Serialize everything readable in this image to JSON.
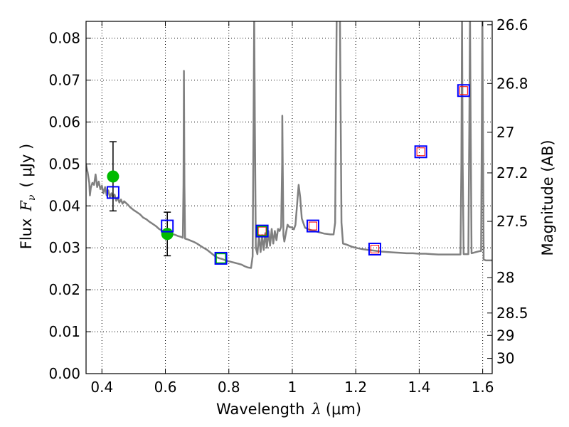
{
  "chart_data": {
    "type": "scatter",
    "xlabel": {
      "prefix": "Wavelength",
      "symbol": "λ",
      "unit": "(μm)"
    },
    "ylabel": {
      "prefix": "Flux",
      "symbol": "F",
      "subscript": "ν",
      "unit": "( μJy )"
    },
    "ylabel_right": "Magnitude (AB)",
    "xlim": [
      0.35,
      1.63
    ],
    "ylim": [
      0.0,
      0.084
    ],
    "grid": true,
    "x_ticks": [
      {
        "value": 0.4,
        "label": "0.4"
      },
      {
        "value": 0.6,
        "label": "0.6"
      },
      {
        "value": 0.8,
        "label": "0.8"
      },
      {
        "value": 1.0,
        "label": "1"
      },
      {
        "value": 1.2,
        "label": "1.2"
      },
      {
        "value": 1.4,
        "label": "1.4"
      },
      {
        "value": 1.6,
        "label": "1.6"
      }
    ],
    "y_ticks": [
      {
        "value": 0.0,
        "label": "0.00"
      },
      {
        "value": 0.01,
        "label": "0.01"
      },
      {
        "value": 0.02,
        "label": "0.02"
      },
      {
        "value": 0.03,
        "label": "0.03"
      },
      {
        "value": 0.04,
        "label": "0.04"
      },
      {
        "value": 0.05,
        "label": "0.05"
      },
      {
        "value": 0.06,
        "label": "0.06"
      },
      {
        "value": 0.07,
        "label": "0.07"
      },
      {
        "value": 0.08,
        "label": "0.08"
      }
    ],
    "mag_ticks": [
      {
        "value": 26.6,
        "label": "26.6"
      },
      {
        "value": 26.8,
        "label": "26.8"
      },
      {
        "value": 27.0,
        "label": "27"
      },
      {
        "value": 27.2,
        "label": "27.2"
      },
      {
        "value": 27.5,
        "label": "27.5"
      },
      {
        "value": 28.0,
        "label": "28"
      },
      {
        "value": 28.5,
        "label": "28.5"
      },
      {
        "value": 29.0,
        "label": "29"
      },
      {
        "value": 30.0,
        "label": "30"
      }
    ],
    "series": [
      {
        "kind": "model_spectrum",
        "color": "#808080",
        "points": [
          [
            0.35,
            0.0498
          ],
          [
            0.355,
            0.048
          ],
          [
            0.36,
            0.0455
          ],
          [
            0.362,
            0.0425
          ],
          [
            0.365,
            0.0443
          ],
          [
            0.37,
            0.0455
          ],
          [
            0.375,
            0.045
          ],
          [
            0.38,
            0.0475
          ],
          [
            0.385,
            0.0445
          ],
          [
            0.39,
            0.0458
          ],
          [
            0.395,
            0.044
          ],
          [
            0.4,
            0.0448
          ],
          [
            0.405,
            0.043
          ],
          [
            0.41,
            0.0445
          ],
          [
            0.415,
            0.0425
          ],
          [
            0.42,
            0.0437
          ],
          [
            0.425,
            0.042
          ],
          [
            0.43,
            0.043
          ],
          [
            0.435,
            0.0418
          ],
          [
            0.44,
            0.0427
          ],
          [
            0.445,
            0.0412
          ],
          [
            0.45,
            0.042
          ],
          [
            0.455,
            0.0408
          ],
          [
            0.46,
            0.0415
          ],
          [
            0.465,
            0.0405
          ],
          [
            0.47,
            0.0411
          ],
          [
            0.48,
            0.0404
          ],
          [
            0.49,
            0.0396
          ],
          [
            0.5,
            0.039
          ],
          [
            0.51,
            0.0385
          ],
          [
            0.52,
            0.038
          ],
          [
            0.53,
            0.0372
          ],
          [
            0.54,
            0.0368
          ],
          [
            0.55,
            0.0362
          ],
          [
            0.56,
            0.0357
          ],
          [
            0.57,
            0.0352
          ],
          [
            0.58,
            0.0345
          ],
          [
            0.59,
            0.0341
          ],
          [
            0.6,
            0.0338
          ],
          [
            0.61,
            0.0336
          ],
          [
            0.62,
            0.0333
          ],
          [
            0.63,
            0.0331
          ],
          [
            0.64,
            0.0328
          ],
          [
            0.65,
            0.0326
          ],
          [
            0.655,
            0.0324
          ],
          [
            0.657,
            0.045
          ],
          [
            0.6585,
            0.0722
          ],
          [
            0.66,
            0.045
          ],
          [
            0.662,
            0.0322
          ],
          [
            0.67,
            0.032
          ],
          [
            0.68,
            0.0317
          ],
          [
            0.69,
            0.0314
          ],
          [
            0.7,
            0.031
          ],
          [
            0.71,
            0.0305
          ],
          [
            0.72,
            0.03
          ],
          [
            0.73,
            0.0296
          ],
          [
            0.74,
            0.029
          ],
          [
            0.75,
            0.0284
          ],
          [
            0.76,
            0.0278
          ],
          [
            0.77,
            0.0275
          ],
          [
            0.78,
            0.0273
          ],
          [
            0.79,
            0.027
          ],
          [
            0.8,
            0.0268
          ],
          [
            0.81,
            0.0266
          ],
          [
            0.82,
            0.0264
          ],
          [
            0.83,
            0.0262
          ],
          [
            0.84,
            0.026
          ],
          [
            0.85,
            0.0256
          ],
          [
            0.86,
            0.0253
          ],
          [
            0.87,
            0.0252
          ],
          [
            0.875,
            0.028
          ],
          [
            0.878,
            0.06
          ],
          [
            0.88,
            0.086
          ],
          [
            0.882,
            0.06
          ],
          [
            0.885,
            0.03
          ],
          [
            0.89,
            0.0285
          ],
          [
            0.895,
            0.033
          ],
          [
            0.9,
            0.029
          ],
          [
            0.905,
            0.033
          ],
          [
            0.91,
            0.0295
          ],
          [
            0.915,
            0.0335
          ],
          [
            0.92,
            0.03
          ],
          [
            0.925,
            0.034
          ],
          [
            0.93,
            0.0305
          ],
          [
            0.935,
            0.0345
          ],
          [
            0.94,
            0.031
          ],
          [
            0.945,
            0.034
          ],
          [
            0.95,
            0.0318
          ],
          [
            0.955,
            0.0345
          ],
          [
            0.96,
            0.034
          ],
          [
            0.965,
            0.035
          ],
          [
            0.968,
            0.05
          ],
          [
            0.9685,
            0.0615
          ],
          [
            0.97,
            0.048
          ],
          [
            0.972,
            0.033
          ],
          [
            0.975,
            0.0315
          ],
          [
            0.98,
            0.0335
          ],
          [
            0.985,
            0.0355
          ],
          [
            0.99,
            0.035
          ],
          [
            1.0,
            0.0348
          ],
          [
            1.005,
            0.0344
          ],
          [
            1.01,
            0.0355
          ],
          [
            1.02,
            0.045
          ],
          [
            1.025,
            0.042
          ],
          [
            1.03,
            0.037
          ],
          [
            1.04,
            0.0348
          ],
          [
            1.05,
            0.0344
          ],
          [
            1.06,
            0.0342
          ],
          [
            1.07,
            0.034
          ],
          [
            1.08,
            0.0338
          ],
          [
            1.09,
            0.0336
          ],
          [
            1.1,
            0.0334
          ],
          [
            1.11,
            0.0333
          ],
          [
            1.12,
            0.0332
          ],
          [
            1.13,
            0.0332
          ],
          [
            1.135,
            0.036
          ],
          [
            1.14,
            0.086
          ],
          [
            1.15,
            0.086
          ],
          [
            1.155,
            0.036
          ],
          [
            1.16,
            0.031
          ],
          [
            1.17,
            0.0308
          ],
          [
            1.18,
            0.0305
          ],
          [
            1.19,
            0.0302
          ],
          [
            1.2,
            0.03
          ],
          [
            1.22,
            0.0297
          ],
          [
            1.24,
            0.0295
          ],
          [
            1.26,
            0.0293
          ],
          [
            1.28,
            0.0291
          ],
          [
            1.3,
            0.029
          ],
          [
            1.32,
            0.0289
          ],
          [
            1.34,
            0.0288
          ],
          [
            1.36,
            0.0287
          ],
          [
            1.38,
            0.0287
          ],
          [
            1.4,
            0.0286
          ],
          [
            1.42,
            0.0286
          ],
          [
            1.44,
            0.0285
          ],
          [
            1.46,
            0.0284
          ],
          [
            1.48,
            0.0284
          ],
          [
            1.5,
            0.0284
          ],
          [
            1.52,
            0.0284
          ],
          [
            1.53,
            0.0284
          ],
          [
            1.533,
            0.05
          ],
          [
            1.535,
            0.086
          ],
          [
            1.537,
            0.05
          ],
          [
            1.54,
            0.0285
          ],
          [
            1.55,
            0.0285
          ],
          [
            1.555,
            0.0285
          ],
          [
            1.558,
            0.06
          ],
          [
            1.56,
            0.086
          ],
          [
            1.562,
            0.06
          ],
          [
            1.565,
            0.0287
          ],
          [
            1.58,
            0.029
          ],
          [
            1.59,
            0.0292
          ],
          [
            1.595,
            0.0292
          ],
          [
            1.597,
            0.055
          ],
          [
            1.599,
            0.086
          ],
          [
            1.601,
            0.055
          ],
          [
            1.603,
            0.0272
          ],
          [
            1.61,
            0.027
          ],
          [
            1.63,
            0.027
          ]
        ]
      },
      {
        "kind": "observed",
        "color": "#00bb00",
        "points": [
          {
            "x": 0.435,
            "y": 0.047,
            "err_low": 0.0388,
            "err_high": 0.0553
          },
          {
            "x": 0.606,
            "y": 0.0333,
            "err_low": 0.0281,
            "err_high": 0.0385
          }
        ]
      },
      {
        "kind": "model_photometry",
        "color": "#0000ff",
        "points": [
          {
            "x": 0.435,
            "y": 0.0432
          },
          {
            "x": 0.606,
            "y": 0.0352
          },
          {
            "x": 0.775,
            "y": 0.0275
          },
          {
            "x": 0.905,
            "y": 0.034
          },
          {
            "x": 1.065,
            "y": 0.0352
          },
          {
            "x": 1.26,
            "y": 0.0297
          },
          {
            "x": 1.405,
            "y": 0.0529
          },
          {
            "x": 1.54,
            "y": 0.0675
          }
        ]
      },
      {
        "kind": "observed_squares",
        "color": "#ff0000",
        "points": [
          {
            "x": 0.905,
            "y": 0.034
          },
          {
            "x": 1.065,
            "y": 0.0352
          },
          {
            "x": 1.26,
            "y": 0.0297
          },
          {
            "x": 1.405,
            "y": 0.0529
          },
          {
            "x": 1.54,
            "y": 0.0675
          }
        ]
      },
      {
        "kind": "observed_squares_green",
        "color": "#00bb00",
        "points": [
          {
            "x": 0.775,
            "y": 0.0275
          },
          {
            "x": 0.905,
            "y": 0.034
          }
        ]
      }
    ]
  }
}
